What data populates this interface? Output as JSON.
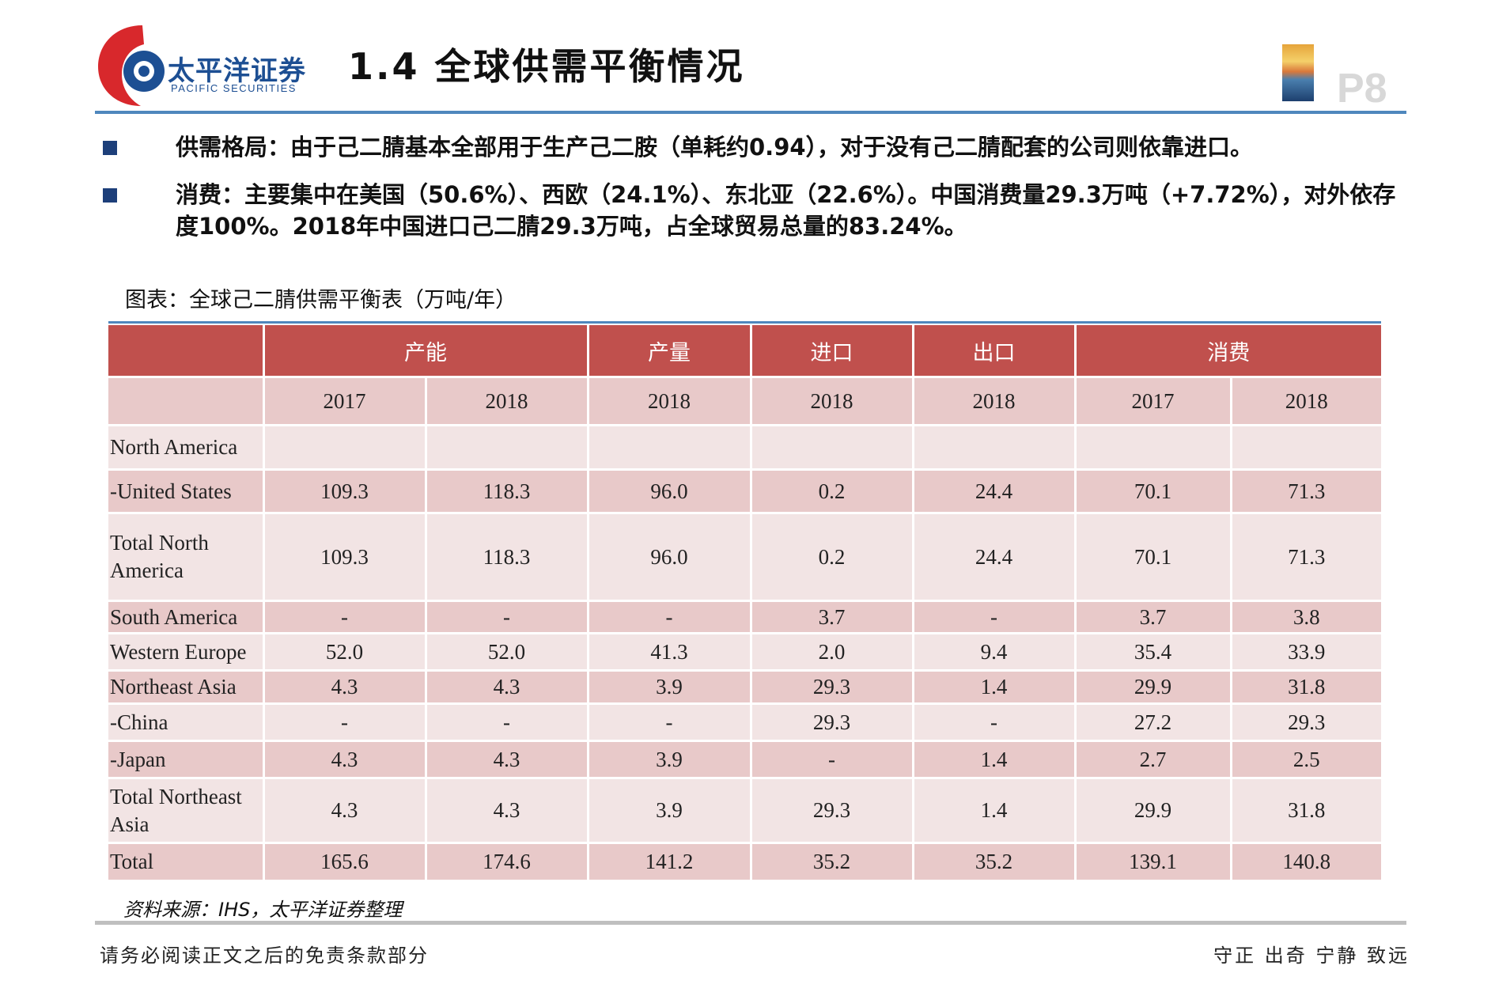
{
  "header": {
    "logo_cn": "太平洋证券",
    "logo_en": "PACIFIC SECURITIES",
    "title": "1.4 全球供需平衡情况",
    "page_number": "P8"
  },
  "bullets": [
    "供需格局：由于己二腈基本全部用于生产己二胺（单耗约0.94），对于没有己二腈配套的公司则依靠进口。",
    "消费：主要集中在美国（50.6%）、西欧（24.1%）、东北亚（22.6%）。中国消费量29.3万吨（+7.72%），对外依存度100%。2018年中国进口己二腈29.3万吨，占全球贸易总量的83.24%。"
  ],
  "table": {
    "caption": "图表：全球己二腈供需平衡表（万吨/年）",
    "groups": [
      "产能",
      "产量",
      "进口",
      "出口",
      "消费"
    ],
    "years": [
      "2017",
      "2018",
      "2018",
      "2018",
      "2018",
      "2017",
      "2018"
    ],
    "rows": [
      {
        "name": "North America",
        "values": [
          "",
          "",
          "",
          "",
          "",
          "",
          ""
        ]
      },
      {
        "name": "-United States",
        "values": [
          "109.3",
          "118.3",
          "96.0",
          "0.2",
          "24.4",
          "70.1",
          "71.3"
        ]
      },
      {
        "name": "Total North America",
        "values": [
          "109.3",
          "118.3",
          "96.0",
          "0.2",
          "24.4",
          "70.1",
          "71.3"
        ]
      },
      {
        "name": "South America",
        "values": [
          "-",
          "-",
          "-",
          "3.7",
          "-",
          "3.7",
          "3.8"
        ]
      },
      {
        "name": "Western Europe",
        "values": [
          "52.0",
          "52.0",
          "41.3",
          "2.0",
          "9.4",
          "35.4",
          "33.9"
        ]
      },
      {
        "name": "Northeast Asia",
        "values": [
          "4.3",
          "4.3",
          "3.9",
          "29.3",
          "1.4",
          "29.9",
          "31.8"
        ]
      },
      {
        "name": "-China",
        "values": [
          "-",
          "-",
          "-",
          "29.3",
          "-",
          "27.2",
          "29.3"
        ]
      },
      {
        "name": "-Japan",
        "values": [
          "4.3",
          "4.3",
          "3.9",
          "-",
          "1.4",
          "2.7",
          "2.5"
        ]
      },
      {
        "name": "Total Northeast Asia",
        "values": [
          "4.3",
          "4.3",
          "3.9",
          "29.3",
          "1.4",
          "29.9",
          "31.8"
        ]
      },
      {
        "name": "Total",
        "values": [
          "165.6",
          "174.6",
          "141.2",
          "35.2",
          "35.2",
          "139.1",
          "140.8"
        ]
      }
    ]
  },
  "footer": {
    "source": "资料来源：IHS，太平洋证券整理",
    "disclaimer": "请务必阅读正文之后的免责条款部分",
    "motto": "守正 出奇 宁静 致远"
  },
  "colors": {
    "brand_blue": "#1d4f93",
    "brand_red": "#d8282c",
    "table_header": "#c0504d",
    "row_dark": "#e8c9c9",
    "row_light": "#f2e4e4",
    "rule_blue": "#4f87bd"
  }
}
